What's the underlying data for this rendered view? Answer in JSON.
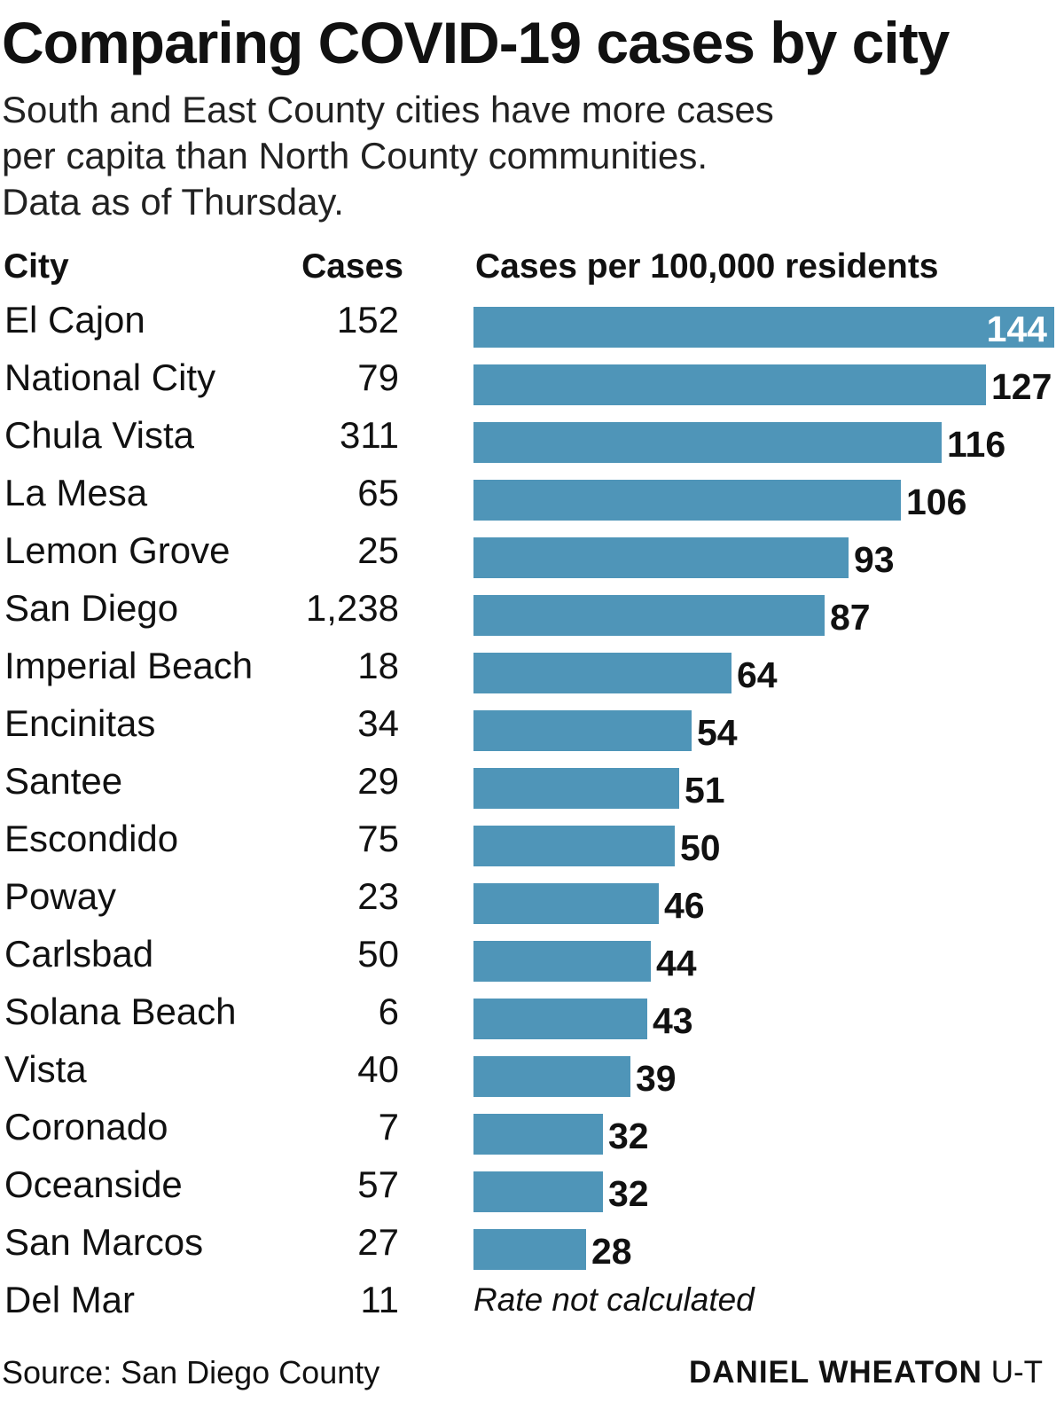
{
  "title": "Comparing COVID-19 cases by city",
  "subtitle_lines": [
    "South and East County cities have more cases",
    "per capita than North County communities.",
    "Data as of Thursday."
  ],
  "headers": {
    "city": "City",
    "cases": "Cases",
    "rate": "Cases per 100,000 residents"
  },
  "footer": {
    "source": "Source: San Diego County",
    "credit_name": "DANIEL WHEATON",
    "credit_org": "U-T"
  },
  "colors": {
    "bar": "#4f95b8"
  },
  "chart_data": {
    "type": "bar",
    "orientation": "horizontal",
    "xlim": [
      0,
      144
    ],
    "categories": [
      "El Cajon",
      "National City",
      "Chula Vista",
      "La Mesa",
      "Lemon Grove",
      "San Diego",
      "Imperial Beach",
      "Encinitas",
      "Santee",
      "Escondido",
      "Poway",
      "Carlsbad",
      "Solana Beach",
      "Vista",
      "Coronado",
      "Oceanside",
      "San Marcos",
      "Del Mar"
    ],
    "cases": [
      "152",
      "79",
      "311",
      "65",
      "25",
      "1,238",
      "18",
      "34",
      "29",
      "75",
      "23",
      "50",
      "6",
      "40",
      "7",
      "57",
      "27",
      "11"
    ],
    "values": [
      144,
      127,
      116,
      106,
      93,
      87,
      64,
      54,
      51,
      50,
      46,
      44,
      43,
      39,
      32,
      32,
      28,
      null
    ],
    "value_labels": [
      "144",
      "127",
      "116",
      "106",
      "93",
      "87",
      "64",
      "54",
      "51",
      "50",
      "46",
      "44",
      "43",
      "39",
      "32",
      "32",
      "28",
      ""
    ],
    "missing_note": "Rate not calculated"
  }
}
